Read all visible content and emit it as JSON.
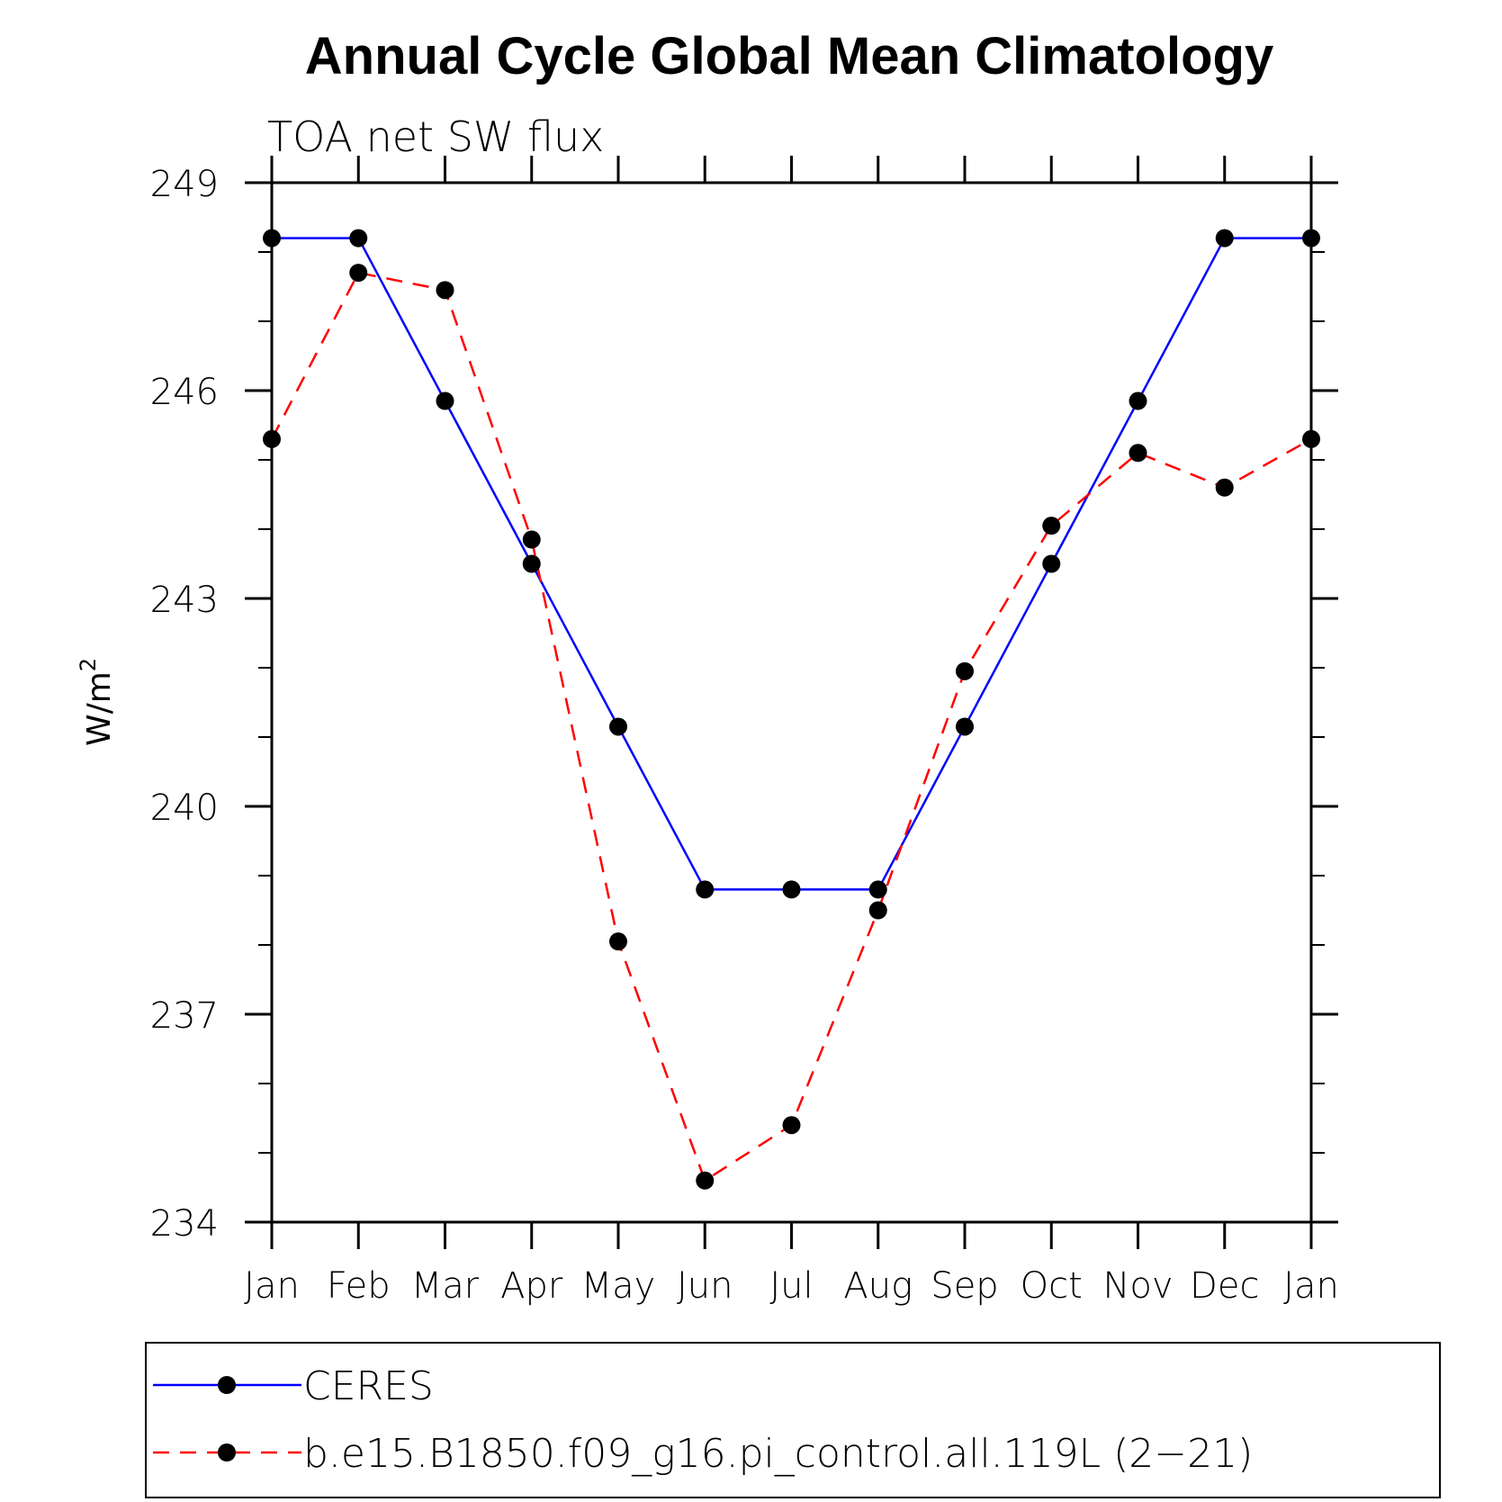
{
  "chart_data": {
    "type": "line",
    "title": "Annual Cycle Global Mean Climatology",
    "subtitle": "TOA net SW flux",
    "xlabel": "",
    "ylabel": "W/m",
    "ylabel_superscript": "2",
    "ylim": [
      234,
      249
    ],
    "yticks": [
      234,
      237,
      240,
      243,
      246,
      249
    ],
    "categories": [
      "Jan",
      "Feb",
      "Mar",
      "Apr",
      "May",
      "Jun",
      "Jul",
      "Aug",
      "Sep",
      "Oct",
      "Nov",
      "Dec",
      "Jan"
    ],
    "series": [
      {
        "name": "CERES",
        "color": "#0000ff",
        "line_style": "solid",
        "values": [
          248.2,
          248.2,
          245.85,
          243.5,
          241.15,
          238.8,
          238.8,
          238.8,
          241.15,
          243.5,
          245.85,
          248.2,
          248.2
        ]
      },
      {
        "name": "b.e15.B1850.f09_g16.pi_control.all.119L (2−21)",
        "color": "#ff0000",
        "line_style": "dashed",
        "values": [
          245.3,
          247.7,
          247.45,
          243.85,
          238.05,
          234.6,
          235.4,
          238.5,
          241.95,
          244.05,
          245.1,
          244.6,
          245.3
        ]
      }
    ],
    "marker_color": "#000000",
    "legend": {
      "position": "bottom"
    }
  }
}
